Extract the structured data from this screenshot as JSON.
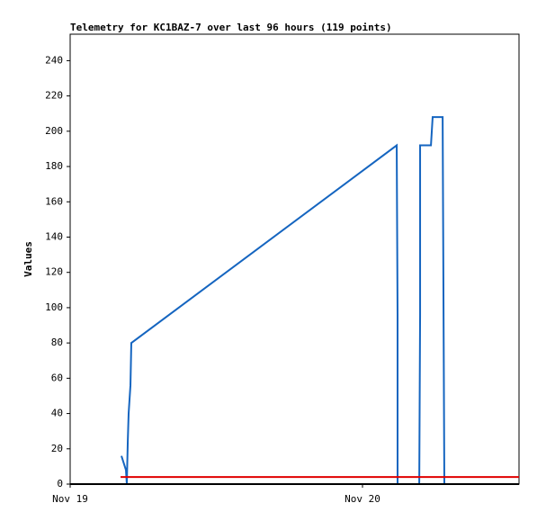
{
  "chart_data": {
    "type": "line",
    "title": "Telemetry for KC1BAZ-7 over last 96 hours (119 points)",
    "y_label": "Values",
    "xlim": [
      0,
      36.85
    ],
    "xticks": [
      {
        "value": 0,
        "label": "Nov 19"
      },
      {
        "value": 24,
        "label": "Nov 20"
      }
    ],
    "ylim": [
      0,
      255
    ],
    "yticks": [
      0,
      20,
      40,
      60,
      80,
      100,
      120,
      140,
      160,
      180,
      200,
      220,
      240
    ],
    "series": [
      {
        "color": "#1565c0",
        "x": [
          4.21,
          4.58,
          4.65,
          4.73,
          4.8,
          4.95,
          5.02,
          26.81,
          26.88,
          26.88,
          28.66,
          28.73,
          28.73,
          29.62,
          29.69,
          29.76,
          30.58,
          30.65,
          30.72
        ],
        "values": [
          16,
          8,
          0,
          24,
          40,
          56,
          80,
          192,
          96,
          0,
          0,
          96,
          192,
          192,
          200,
          208,
          208,
          104,
          0
        ]
      },
      {
        "color": "#e00000",
        "x": [
          4.14,
          36.85
        ],
        "values": [
          4,
          4
        ]
      },
      {
        "color": "#000000",
        "x": [
          0,
          36.85
        ],
        "values": [
          0,
          0
        ]
      }
    ]
  }
}
